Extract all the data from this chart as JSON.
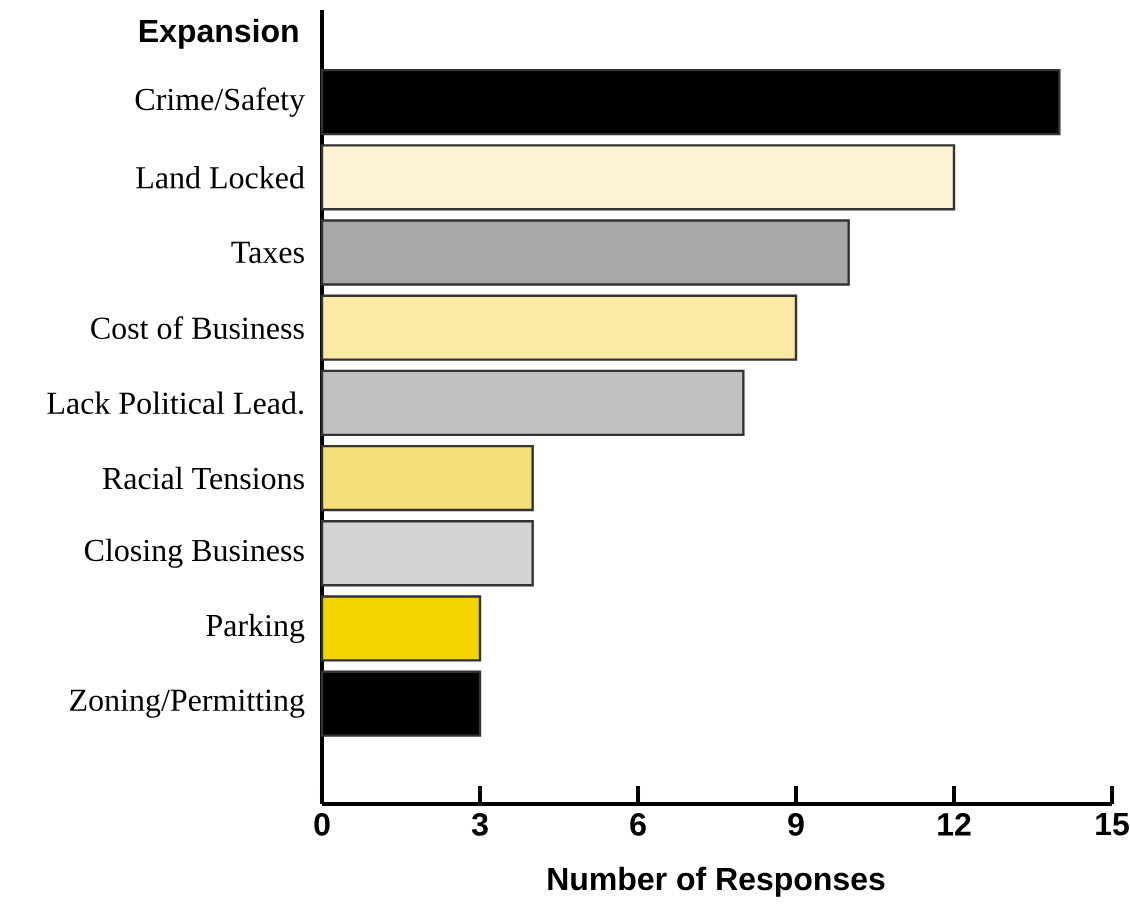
{
  "chart_data": {
    "type": "bar",
    "orientation": "horizontal",
    "title": "Expansion",
    "xlabel": "Number of Responses",
    "categories": [
      "Crime/Safety",
      "Land Locked",
      "Taxes",
      "Cost of Business",
      "Lack Political Lead.",
      "Racial Tensions",
      "Closing Business",
      "Parking",
      "Zoning/Permitting"
    ],
    "values": [
      14,
      12,
      10,
      9,
      8,
      4,
      4,
      3,
      3
    ],
    "colors": [
      "#000000",
      "#fdf3d6",
      "#a8a8a8",
      "#fbe9a5",
      "#c0c0c0",
      "#f5df78",
      "#d4d4d4",
      "#f2d500",
      "#000000"
    ],
    "xlim": [
      0,
      15
    ],
    "xticks": [
      0,
      3,
      6,
      9,
      12,
      15
    ]
  }
}
